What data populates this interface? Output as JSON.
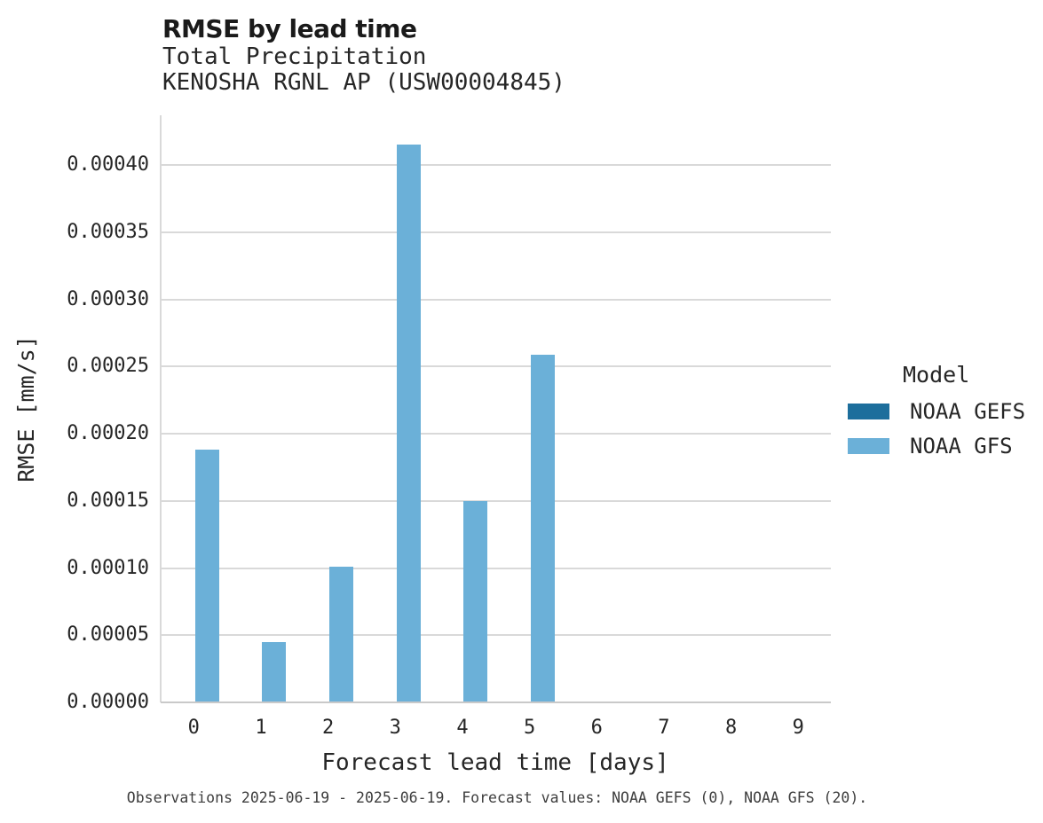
{
  "header": {
    "title": "RMSE by lead time",
    "subtitle_line1": "Total Precipitation",
    "subtitle_line2": "KENOSHA RGNL AP (USW00004845)"
  },
  "chart_data": {
    "type": "bar",
    "title": "RMSE by lead time",
    "subtitle": "Total Precipitation",
    "station": "KENOSHA RGNL AP (USW00004845)",
    "xlabel": "Forecast lead time [days]",
    "ylabel": "RMSE [mm/s]",
    "categories": [
      "0",
      "1",
      "2",
      "3",
      "4",
      "5",
      "6",
      "7",
      "8",
      "9"
    ],
    "series": [
      {
        "name": "NOAA GEFS",
        "color": "#1d6e9c",
        "values": [
          null,
          null,
          null,
          null,
          null,
          null,
          null,
          null,
          null,
          null
        ]
      },
      {
        "name": "NOAA GFS",
        "color": "#6bb0d8",
        "values": [
          0.000188,
          4.5e-05,
          0.000101,
          0.000415,
          0.00015,
          0.000259,
          null,
          null,
          null,
          null
        ]
      }
    ],
    "ylim": [
      0,
      0.000437
    ],
    "yticks": [
      {
        "value": 0.0,
        "label": "0.00000"
      },
      {
        "value": 5e-05,
        "label": "0.00005"
      },
      {
        "value": 0.0001,
        "label": "0.00010"
      },
      {
        "value": 0.00015,
        "label": "0.00015"
      },
      {
        "value": 0.0002,
        "label": "0.00020"
      },
      {
        "value": 0.00025,
        "label": "0.00025"
      },
      {
        "value": 0.0003,
        "label": "0.00030"
      },
      {
        "value": 0.00035,
        "label": "0.00035"
      },
      {
        "value": 0.0004,
        "label": "0.00040"
      }
    ],
    "grid": "horizontal",
    "legend": {
      "title": "Model",
      "position": "right-center"
    }
  },
  "colors": {
    "grid": "#d9d9d9",
    "axis": "#c9c9c9",
    "noaa_gefs": "#1d6e9c",
    "noaa_gfs": "#6bb0d8"
  },
  "caption": {
    "text": "Observations 2025-06-19 - 2025-06-19. Forecast values: NOAA GEFS (0), NOAA GFS (20)."
  }
}
